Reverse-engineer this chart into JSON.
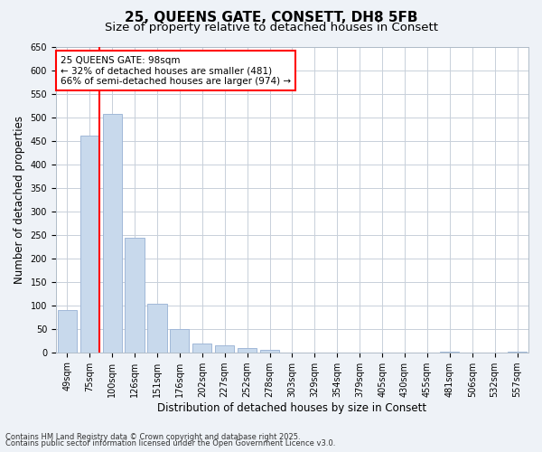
{
  "title_line1": "25, QUEENS GATE, CONSETT, DH8 5FB",
  "title_line2": "Size of property relative to detached houses in Consett",
  "xlabel": "Distribution of detached houses by size in Consett",
  "ylabel": "Number of detached properties",
  "footnote1": "Contains HM Land Registry data © Crown copyright and database right 2025.",
  "footnote2": "Contains public sector information licensed under the Open Government Licence v3.0.",
  "categories": [
    "49sqm",
    "75sqm",
    "100sqm",
    "126sqm",
    "151sqm",
    "176sqm",
    "202sqm",
    "227sqm",
    "252sqm",
    "278sqm",
    "303sqm",
    "329sqm",
    "354sqm",
    "379sqm",
    "405sqm",
    "430sqm",
    "455sqm",
    "481sqm",
    "506sqm",
    "532sqm",
    "557sqm"
  ],
  "values": [
    90,
    460,
    507,
    243,
    103,
    49,
    18,
    14,
    10,
    5,
    0,
    0,
    0,
    0,
    0,
    0,
    0,
    2,
    0,
    0,
    2
  ],
  "bar_color": "#c8d9ec",
  "bar_edge_color": "#a0b8d8",
  "annotation_text": "25 QUEENS GATE: 98sqm\n← 32% of detached houses are smaller (481)\n66% of semi-detached houses are larger (974) →",
  "annotation_box_color": "white",
  "annotation_box_edge_color": "red",
  "highlight_line_color": "red",
  "ylim": [
    0,
    650
  ],
  "yticks": [
    0,
    50,
    100,
    150,
    200,
    250,
    300,
    350,
    400,
    450,
    500,
    550,
    600,
    650
  ],
  "background_color": "#eef2f7",
  "plot_background_color": "white",
  "grid_color": "#c8d0da",
  "title_fontsize": 11,
  "subtitle_fontsize": 9.5,
  "axis_label_fontsize": 8.5,
  "tick_fontsize": 7,
  "annotation_fontsize": 7.5,
  "footnote_fontsize": 6
}
